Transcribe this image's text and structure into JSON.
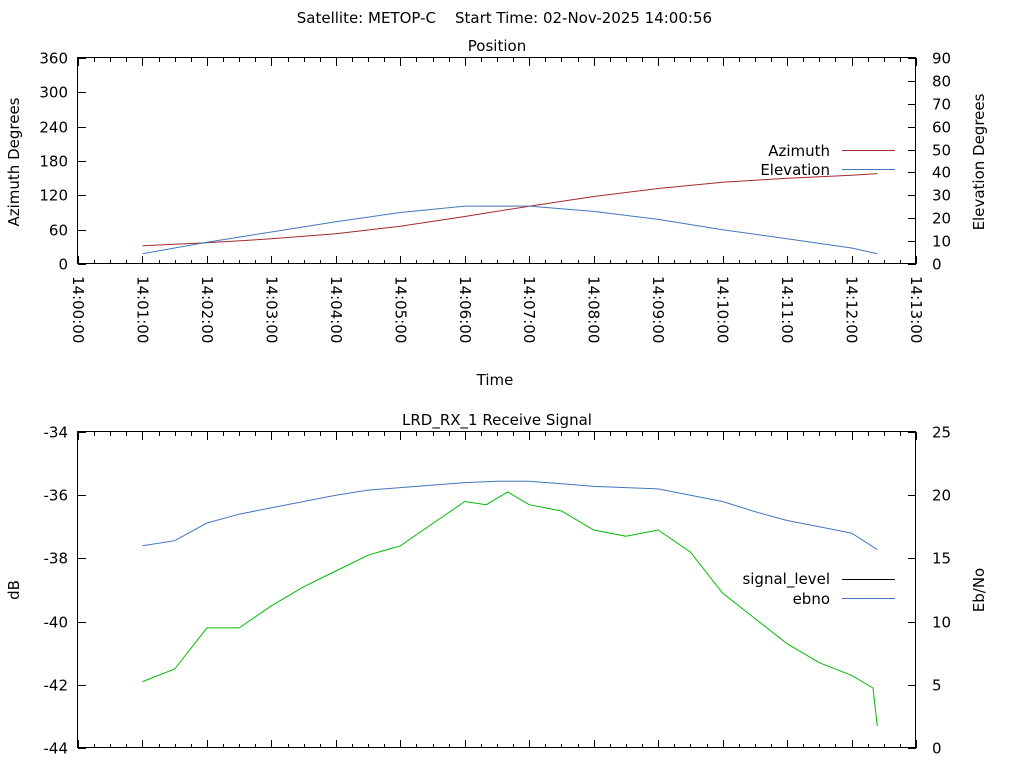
{
  "header": {
    "satellite": "Satellite: METOP-C",
    "start_time": "Start Time: 02-Nov-2025 14:00:56"
  },
  "chart_data": [
    {
      "type": "line",
      "title": "Position",
      "xlabel": "Time",
      "ylabel": "Azimuth Degrees",
      "y2label": "Elevation Degrees",
      "xlim": [
        "14:00:00",
        "14:13:00"
      ],
      "ylim": [
        0,
        360
      ],
      "y2lim": [
        0,
        90
      ],
      "x_ticks": [
        "14:00:00",
        "14:01:00",
        "14:02:00",
        "14:03:00",
        "14:04:00",
        "14:05:00",
        "14:06:00",
        "14:07:00",
        "14:08:00",
        "14:09:00",
        "14:10:00",
        "14:11:00",
        "14:12:00",
        "14:13:00"
      ],
      "y_ticks": [
        "0",
        "60",
        "120",
        "180",
        "240",
        "300",
        "360"
      ],
      "y2_ticks": [
        "0",
        "10",
        "20",
        "30",
        "40",
        "50",
        "60",
        "70",
        "80",
        "90"
      ],
      "legend_position": "right",
      "series": [
        {
          "name": "Azimuth",
          "axis": "y",
          "color": "#a52a2a",
          "x": [
            "14:01:00",
            "14:02:00",
            "14:03:00",
            "14:04:00",
            "14:05:00",
            "14:06:00",
            "14:07:00",
            "14:08:00",
            "14:09:00",
            "14:10:00",
            "14:11:00",
            "14:12:00",
            "14:12:24"
          ],
          "values": [
            32,
            37,
            44,
            53,
            66,
            83,
            101,
            118,
            132,
            143,
            150,
            155,
            158
          ]
        },
        {
          "name": "Elevation",
          "axis": "y2",
          "color": "#4477bb",
          "x": [
            "14:01:00",
            "14:02:00",
            "14:03:00",
            "14:04:00",
            "14:05:00",
            "14:06:00",
            "14:07:00",
            "14:08:00",
            "14:09:00",
            "14:10:00",
            "14:11:00",
            "14:12:00",
            "14:12:24"
          ],
          "values": [
            4.5,
            9.5,
            14,
            18.5,
            22.5,
            25.3,
            25.3,
            23,
            19.5,
            15,
            11,
            7,
            4.5
          ]
        }
      ]
    },
    {
      "type": "line",
      "title": "LRD_RX_1 Receive Signal",
      "ylabel": "dB",
      "y2label": "Eb/No",
      "xlim": [
        "14:00:00",
        "14:13:00"
      ],
      "ylim": [
        -44,
        -34
      ],
      "y2lim": [
        0,
        25
      ],
      "y_ticks": [
        "-34",
        "-36",
        "-38",
        "-40",
        "-42",
        "-44"
      ],
      "y2_ticks": [
        "0",
        "5",
        "10",
        "15",
        "20",
        "25"
      ],
      "legend_position": "right",
      "series": [
        {
          "name": "signal_level",
          "axis": "y",
          "color": "#00bb00",
          "x": [
            "14:01:00",
            "14:01:30",
            "14:02:00",
            "14:02:30",
            "14:03:00",
            "14:03:30",
            "14:04:00",
            "14:04:30",
            "14:05:00",
            "14:05:30",
            "14:06:00",
            "14:06:20",
            "14:06:40",
            "14:07:00",
            "14:07:30",
            "14:08:00",
            "14:08:30",
            "14:09:00",
            "14:09:30",
            "14:10:00",
            "14:10:30",
            "14:11:00",
            "14:11:30",
            "14:12:00",
            "14:12:20",
            "14:12:24"
          ],
          "values": [
            -41.9,
            -41.5,
            -40.2,
            -40.2,
            -39.5,
            -38.9,
            -38.4,
            -37.9,
            -37.6,
            -36.9,
            -36.2,
            -36.3,
            -35.9,
            -36.3,
            -36.5,
            -37.1,
            -37.3,
            -37.1,
            -37.8,
            -39.1,
            -39.9,
            -40.7,
            -41.3,
            -41.7,
            -42.1,
            -43.3
          ]
        },
        {
          "name": "ebno",
          "axis": "y2",
          "color": "#4477bb",
          "x": [
            "14:01:00",
            "14:01:30",
            "14:02:00",
            "14:02:30",
            "14:03:00",
            "14:03:30",
            "14:04:00",
            "14:04:30",
            "14:05:00",
            "14:05:30",
            "14:06:00",
            "14:06:30",
            "14:07:00",
            "14:07:30",
            "14:08:00",
            "14:08:30",
            "14:09:00",
            "14:09:30",
            "14:10:00",
            "14:10:30",
            "14:11:00",
            "14:11:30",
            "14:12:00",
            "14:12:24"
          ],
          "values": [
            16,
            16.4,
            17.8,
            18.5,
            19.0,
            19.5,
            20.0,
            20.4,
            20.6,
            20.8,
            21.0,
            21.1,
            21.1,
            20.9,
            20.7,
            20.6,
            20.5,
            20.0,
            19.5,
            18.7,
            18.0,
            17.5,
            17.0,
            15.7
          ]
        }
      ]
    }
  ]
}
